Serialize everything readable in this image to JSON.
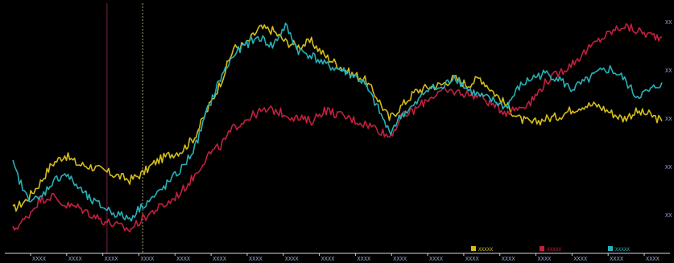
{
  "chart_data": {
    "type": "line",
    "title": "",
    "xlabel": "",
    "ylabel": "",
    "grid": false,
    "legend_position": "bottom-right",
    "background": "#000000",
    "axis_color": "#cfd8e8",
    "x": [
      0,
      2,
      4,
      6,
      8,
      10,
      12,
      14,
      16,
      18,
      20,
      22,
      24,
      26,
      28,
      30,
      32,
      34,
      36,
      38,
      40,
      42,
      44,
      46,
      48,
      50,
      52,
      54,
      56,
      58,
      60,
      62,
      64,
      66,
      68,
      70,
      72,
      74,
      76,
      78,
      80,
      82,
      84,
      86,
      88,
      90,
      92,
      94,
      96,
      98,
      100
    ],
    "ylim": [
      0,
      100
    ],
    "series": [
      {
        "color": "#d4bd1a",
        "values": [
          14,
          18,
          25,
          34,
          38,
          34,
          33,
          31,
          29,
          27,
          30,
          35,
          38,
          40,
          46,
          58,
          70,
          85,
          87,
          94,
          93,
          88,
          86,
          88,
          82,
          78,
          74,
          72,
          64,
          54,
          60,
          66,
          68,
          69,
          72,
          69,
          72,
          66,
          60,
          54,
          52,
          54,
          55,
          58,
          60,
          60,
          57,
          54,
          57,
          56,
          53
        ]
      },
      {
        "color": "#c2203f",
        "values": [
          5,
          10,
          18,
          20,
          16,
          15,
          12,
          9,
          7,
          5,
          10,
          14,
          17,
          22,
          29,
          38,
          42,
          50,
          54,
          57,
          58,
          56,
          54,
          53,
          58,
          56,
          54,
          52,
          50,
          46,
          55,
          58,
          63,
          66,
          66,
          65,
          64,
          60,
          57,
          59,
          62,
          70,
          74,
          78,
          83,
          88,
          92,
          95,
          93,
          91,
          90
        ]
      },
      {
        "color": "#27b1b8",
        "values": [
          34,
          20,
          18,
          26,
          30,
          24,
          18,
          15,
          12,
          10,
          16,
          20,
          26,
          32,
          41,
          58,
          72,
          82,
          87,
          90,
          86,
          95,
          84,
          82,
          78,
          76,
          74,
          70,
          60,
          48,
          56,
          60,
          68,
          67,
          73,
          67,
          64,
          62,
          59,
          68,
          72,
          74,
          72,
          67,
          70,
          74,
          76,
          72,
          64,
          66,
          70
        ]
      }
    ],
    "legend": [
      {
        "color": "#d4bd1a",
        "label": "XXXXX"
      },
      {
        "color": "#c2203f",
        "label": "XXXXX"
      },
      {
        "color": "#27b1b8",
        "label": "XXXXX"
      }
    ],
    "x_tick_labels": [
      "XXXX",
      "XXXX",
      "XXXX",
      "XXXX",
      "XXXX",
      "XXXX",
      "XXXX",
      "XXXX",
      "XXXX",
      "XXXX",
      "XXXX",
      "XXXX",
      "XXXX",
      "XXXX",
      "XXXX",
      "XXXX",
      "XXXX",
      "XXXX"
    ],
    "y_tick_labels": [
      "XX",
      "XX",
      "XX",
      "XX",
      "XX"
    ],
    "markers": [
      {
        "x": 14.5,
        "color": "#7a1f4f"
      },
      {
        "x": 20.0,
        "color": "#a8a27a"
      }
    ]
  }
}
